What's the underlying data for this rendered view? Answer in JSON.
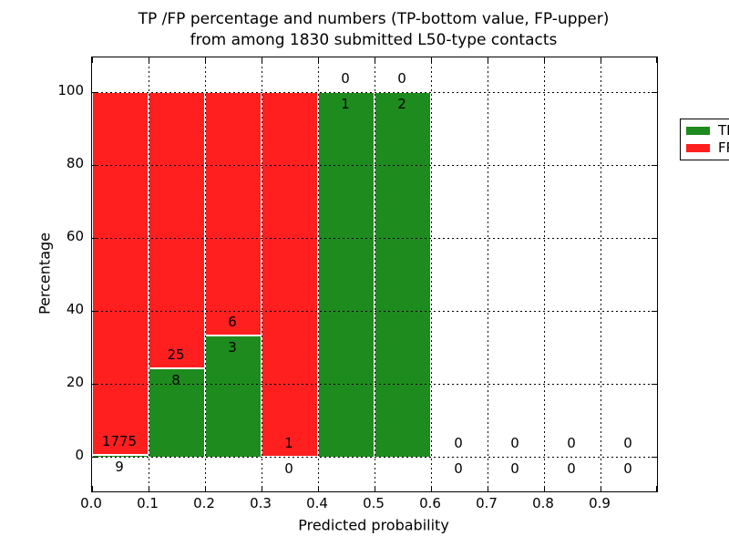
{
  "title": {
    "line1": "TP /FP percentage and numbers (TP-bottom value, FP-upper)",
    "line2": "from among 1830 submitted L50-type contacts"
  },
  "axes": {
    "xlabel": "Predicted probability",
    "ylabel": "Percentage",
    "xtick_labels": [
      "0.0",
      "0.1",
      "0.2",
      "0.3",
      "0.4",
      "0.5",
      "0.6",
      "0.7",
      "0.8",
      "0.9"
    ],
    "ytick_labels": [
      "0",
      "20",
      "40",
      "60",
      "80",
      "100"
    ]
  },
  "legend": {
    "items": [
      {
        "label": "TP",
        "color": "#1e8b1e"
      },
      {
        "label": "FP",
        "color": "#ff1f1f"
      }
    ]
  },
  "colors": {
    "tp": "#1e8b1e",
    "fp": "#ff1f1f",
    "axis": "#000000",
    "background": "#ffffff"
  },
  "chart_data": {
    "type": "bar",
    "stacked": true,
    "unit": "percent",
    "title": "TP /FP percentage and numbers (TP-bottom value, FP-upper) from among 1830 submitted L50-type contacts",
    "xlabel": "Predicted probability",
    "ylabel": "Percentage",
    "categories": [
      "0.0-0.1",
      "0.1-0.2",
      "0.2-0.3",
      "0.3-0.4",
      "0.4-0.5",
      "0.5-0.6",
      "0.6-0.7",
      "0.7-0.8",
      "0.8-0.9",
      "0.9-1.0"
    ],
    "series": [
      {
        "name": "TP",
        "color": "#1e8b1e",
        "counts": [
          9,
          8,
          3,
          0,
          1,
          2,
          0,
          0,
          0,
          0
        ],
        "percent": [
          0.5,
          24.2,
          33.3,
          0,
          100,
          100,
          0,
          0,
          0,
          0
        ]
      },
      {
        "name": "FP",
        "color": "#ff1f1f",
        "counts": [
          1775,
          25,
          6,
          1,
          0,
          0,
          0,
          0,
          0,
          0
        ],
        "percent": [
          99.5,
          75.8,
          66.7,
          100,
          0,
          0,
          0,
          0,
          0,
          0
        ]
      }
    ],
    "total_submitted": 1830,
    "xlim": [
      0.0,
      1.0
    ],
    "ylim": [
      -9.5,
      109.5
    ],
    "yticks": [
      0,
      20,
      40,
      60,
      80,
      100
    ],
    "xticks": [
      0.0,
      0.1,
      0.2,
      0.3,
      0.4,
      0.5,
      0.6,
      0.7,
      0.8,
      0.9,
      1.0
    ],
    "grid": true,
    "grid_style": "dotted",
    "legend_position": "upper right"
  }
}
